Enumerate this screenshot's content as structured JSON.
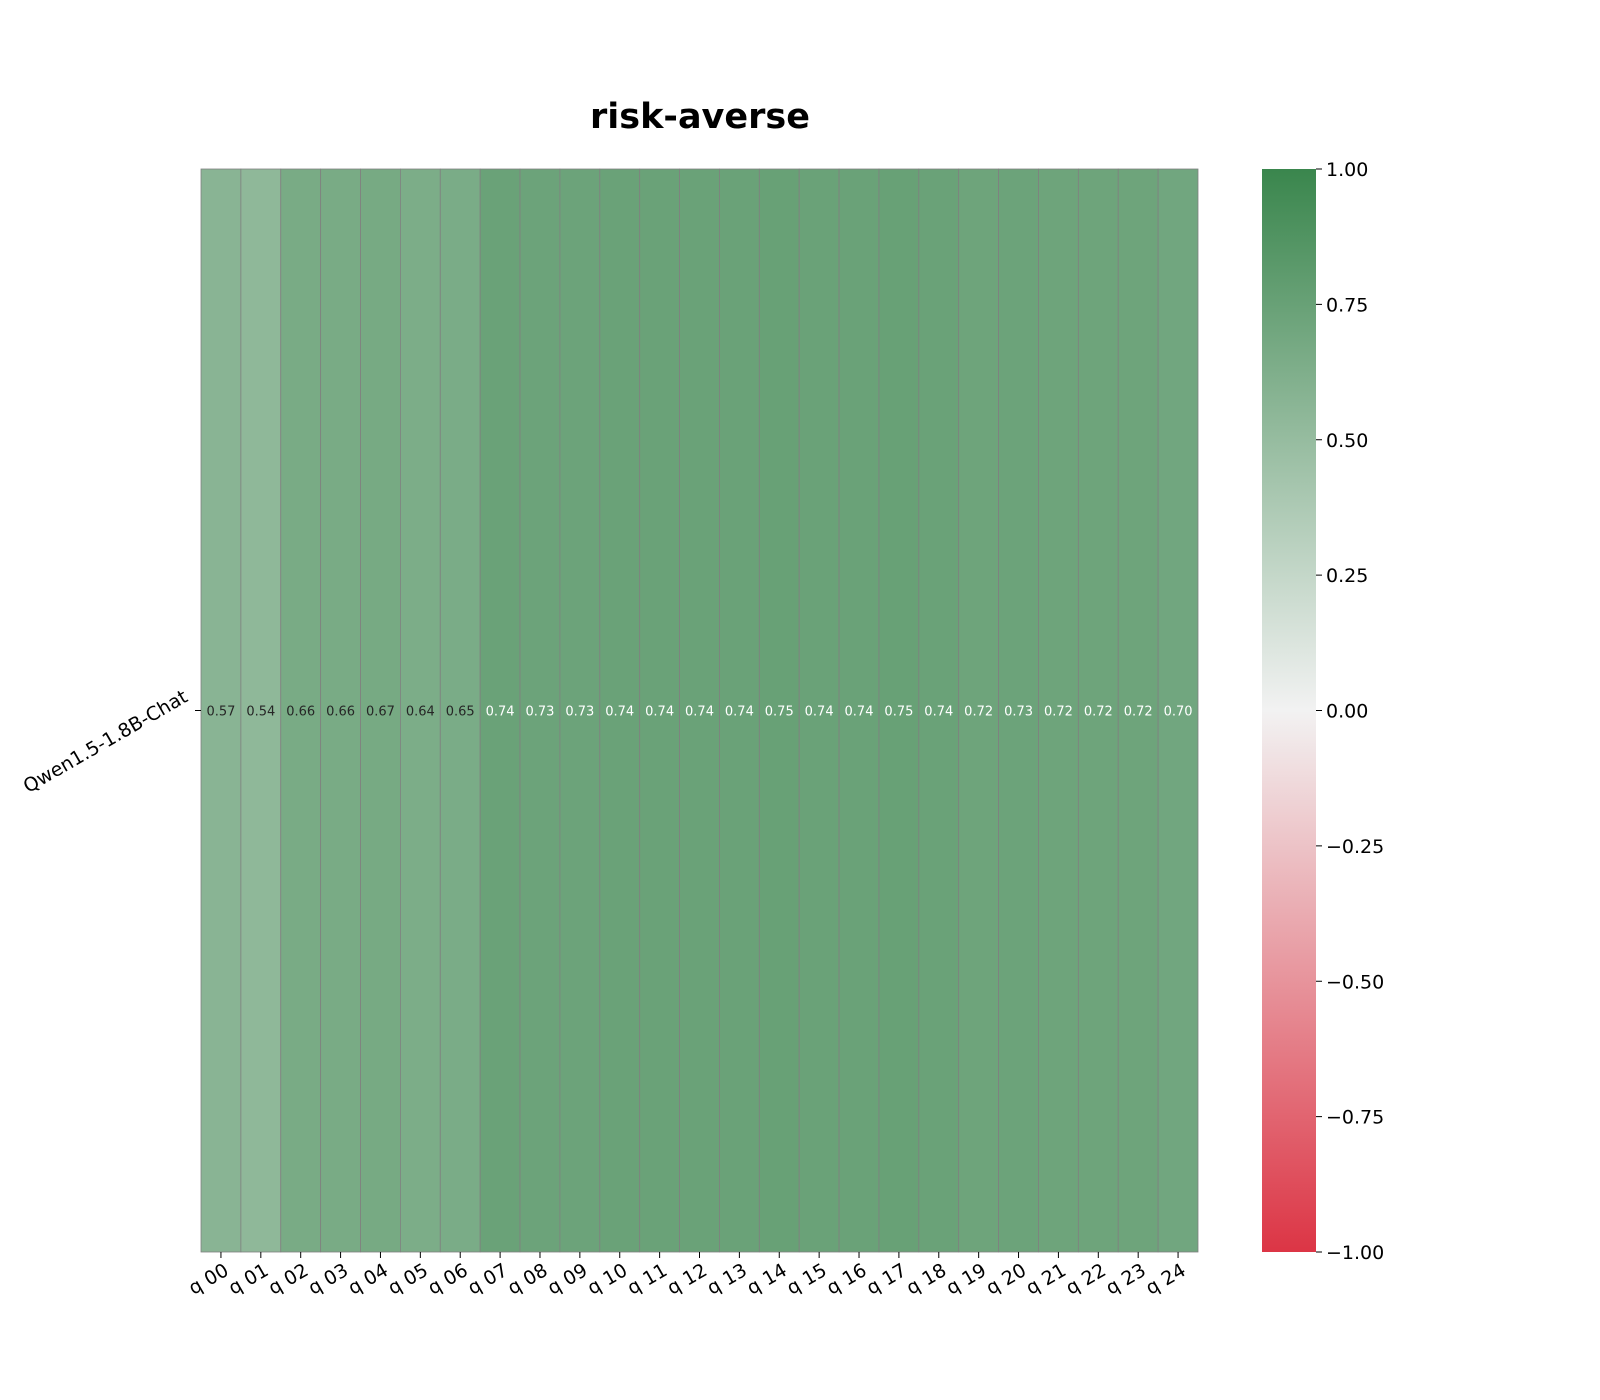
{
  "chart_data": {
    "type": "heatmap",
    "title": "risk-averse",
    "xlabel": "",
    "ylabel": "",
    "rows": [
      "Qwen1.5-1.8B-Chat"
    ],
    "columns": [
      "q 00",
      "q 01",
      "q 02",
      "q 03",
      "q 04",
      "q 05",
      "q 06",
      "q 07",
      "q 08",
      "q 09",
      "q 10",
      "q 11",
      "q 12",
      "q 13",
      "q 14",
      "q 15",
      "q 16",
      "q 17",
      "q 18",
      "q 19",
      "q 20",
      "q 21",
      "q 22",
      "q 23",
      "q 24"
    ],
    "values": [
      [
        0.57,
        0.54,
        0.66,
        0.66,
        0.67,
        0.64,
        0.65,
        0.74,
        0.73,
        0.73,
        0.74,
        0.74,
        0.74,
        0.74,
        0.75,
        0.74,
        0.74,
        0.75,
        0.74,
        0.72,
        0.73,
        0.72,
        0.72,
        0.72,
        0.7
      ]
    ],
    "value_labels": [
      [
        "0.57",
        "0.54",
        "0.66",
        "0.66",
        "0.67",
        "0.64",
        "0.65",
        "0.74",
        "0.73",
        "0.73",
        "0.74",
        "0.74",
        "0.74",
        "0.74",
        "0.75",
        "0.74",
        "0.74",
        "0.75",
        "0.74",
        "0.72",
        "0.73",
        "0.72",
        "0.72",
        "0.72",
        "0.70"
      ]
    ],
    "colorbar": {
      "range": [
        -1.0,
        1.0
      ],
      "ticks": [
        "1.00",
        "0.75",
        "0.50",
        "0.25",
        "0.00",
        "−0.25",
        "−0.50",
        "−0.75",
        "−1.00"
      ],
      "colors": {
        "low": "#dc3545",
        "mid": "#f2f2f2",
        "high": "#3a864d"
      }
    },
    "cell_border_color": "#808080",
    "grid": false,
    "legend": "colorbar-right"
  }
}
